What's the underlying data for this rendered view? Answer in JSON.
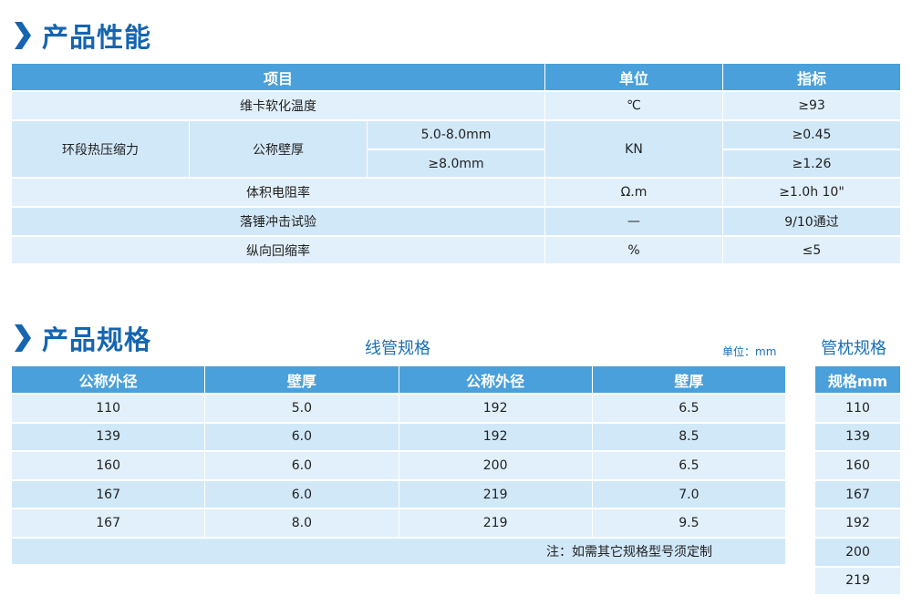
{
  "performance": {
    "title": "产品性能",
    "headers": [
      "项目",
      "单位",
      "指标"
    ],
    "rows": [
      {
        "item": "维卡软化温度",
        "unit": "℃",
        "value": "≥93"
      },
      {
        "item": "环段热压缩力",
        "sub": "公称壁厚",
        "cond": [
          "5.0-8.0mm",
          "≥8.0mm"
        ],
        "unit": "KN",
        "values": [
          "≥0.45",
          "≥1.26"
        ]
      },
      {
        "item": "体积电阻率",
        "unit": "Ω.m",
        "value": "≥1.0h 10\""
      },
      {
        "item": "落锤冲击试验",
        "unit": "—",
        "value": "9/10通过"
      },
      {
        "item": "纵向回缩率",
        "unit": "%",
        "value": "≤5"
      }
    ]
  },
  "specs": {
    "title": "产品规格",
    "conduit_title": "线管规格",
    "unit_label": "单位：mm",
    "headers": [
      "公称外径",
      "壁厚",
      "公称外径",
      "壁厚"
    ],
    "rows": [
      [
        "110",
        "5.0",
        "192",
        "6.5"
      ],
      [
        "139",
        "6.0",
        "192",
        "8.5"
      ],
      [
        "160",
        "6.0",
        "200",
        "6.5"
      ],
      [
        "167",
        "6.0",
        "219",
        "7.0"
      ],
      [
        "167",
        "8.0",
        "219",
        "9.5"
      ]
    ],
    "note": "注：如需其它规格型号须定制",
    "pillow_title": "管枕规格",
    "pillow_header": "规格mm",
    "pillow_rows": [
      "110",
      "139",
      "160",
      "167",
      "192",
      "200",
      "219"
    ]
  },
  "colors": {
    "accent": "#1565b0",
    "header": "#4aa0da",
    "row_light": "#e1f0fb",
    "row_dark": "#d1e8f9"
  }
}
